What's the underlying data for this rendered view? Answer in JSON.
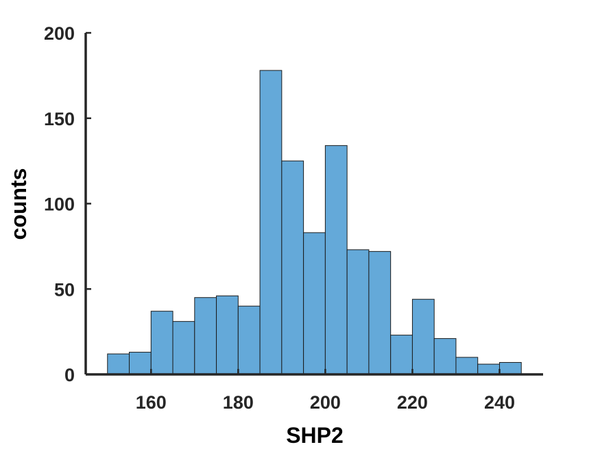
{
  "chart_data": {
    "type": "bar",
    "subtype": "histogram",
    "xlabel": "SHP2",
    "ylabel": "counts",
    "xlim": [
      145,
      250
    ],
    "ylim": [
      0,
      200
    ],
    "xticks": [
      160,
      180,
      200,
      220,
      240
    ],
    "yticks": [
      0,
      50,
      100,
      150,
      200
    ],
    "bin_width": 5,
    "bin_edges": [
      150,
      155,
      160,
      165,
      170,
      175,
      180,
      185,
      190,
      195,
      200,
      205,
      210,
      215,
      220,
      225,
      230,
      235,
      240,
      245
    ],
    "counts": [
      12,
      13,
      37,
      31,
      45,
      46,
      40,
      178,
      125,
      83,
      134,
      73,
      72,
      23,
      44,
      21,
      10,
      6,
      7
    ],
    "grid": false,
    "bar_color": "#64a9d9",
    "edge_color": "#1a1a1a",
    "axis_color": "#262626"
  }
}
